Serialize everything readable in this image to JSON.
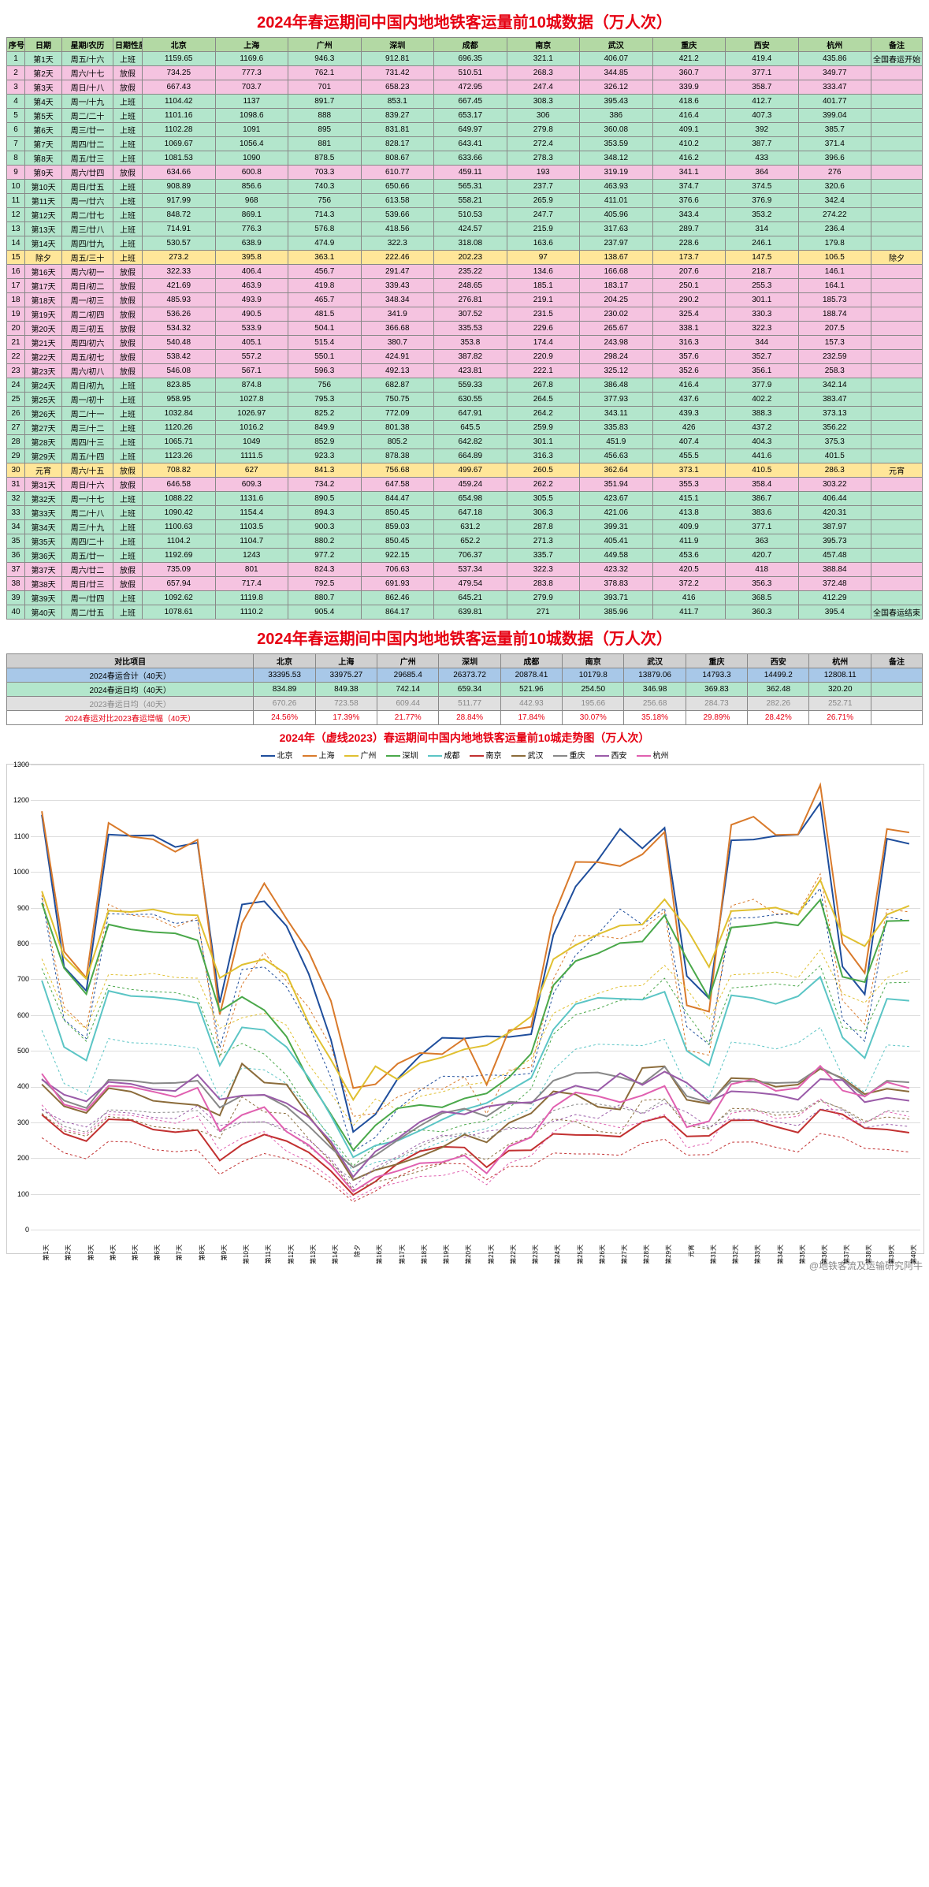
{
  "title_main": "2024年春运期间中国内地地铁客运量前10城数据（万人次）",
  "title_chart": "2024年（虚线2023）春运期间中国内地地铁客运量前10城走势图（万人次）",
  "watermark": "@地铁客流及运输研究阿牛",
  "headers": [
    "序号",
    "日期",
    "星期/农历",
    "日期性质",
    "北京",
    "上海",
    "广州",
    "深圳",
    "成都",
    "南京",
    "武汉",
    "重庆",
    "西安",
    "杭州",
    "备注"
  ],
  "cities": [
    "北京",
    "上海",
    "广州",
    "深圳",
    "成都",
    "南京",
    "武汉",
    "重庆",
    "西安",
    "杭州"
  ],
  "colors": {
    "北京": "#1f4e9c",
    "上海": "#d97a2b",
    "广州": "#e0c030",
    "深圳": "#4aa84a",
    "成都": "#5bc5c5",
    "南京": "#c23030",
    "武汉": "#8b6b3a",
    "重庆": "#888888",
    "西安": "#9a5ba8",
    "杭州": "#e060b0",
    "title": "#e60012",
    "grid": "#dddddd",
    "border": "#888888"
  },
  "rows": [
    {
      "i": 1,
      "d": "第1天",
      "w": "周五/十六",
      "n": "上班",
      "t": "work",
      "v": [
        1159.65,
        1169.6,
        946.3,
        912.81,
        696.35,
        321.1,
        406.07,
        421.2,
        419.4,
        435.86
      ],
      "note": "全国春运开始"
    },
    {
      "i": 2,
      "d": "第2天",
      "w": "周六/十七",
      "n": "放假",
      "t": "rest",
      "v": [
        734.25,
        777.3,
        762.1,
        731.42,
        510.51,
        268.3,
        344.85,
        360.7,
        377.1,
        349.77
      ],
      "note": ""
    },
    {
      "i": 3,
      "d": "第3天",
      "w": "周日/十八",
      "n": "放假",
      "t": "rest",
      "v": [
        667.43,
        703.7,
        701,
        658.23,
        472.95,
        247.4,
        326.12,
        339.9,
        358.7,
        333.47
      ],
      "note": ""
    },
    {
      "i": 4,
      "d": "第4天",
      "w": "周一/十九",
      "n": "上班",
      "t": "work",
      "v": [
        1104.42,
        1137,
        891.7,
        853.1,
        667.45,
        308.3,
        395.43,
        418.6,
        412.7,
        401.77
      ],
      "note": ""
    },
    {
      "i": 5,
      "d": "第5天",
      "w": "周二/二十",
      "n": "上班",
      "t": "work",
      "v": [
        1101.16,
        1098.6,
        888.0,
        839.27,
        653.17,
        306,
        386,
        416.4,
        407.3,
        399.04
      ],
      "note": ""
    },
    {
      "i": 6,
      "d": "第6天",
      "w": "周三/廿一",
      "n": "上班",
      "t": "work",
      "v": [
        1102.28,
        1091,
        895,
        831.81,
        649.97,
        279.8,
        360.08,
        409.1,
        392,
        385.7
      ],
      "note": ""
    },
    {
      "i": 7,
      "d": "第7天",
      "w": "周四/廿二",
      "n": "上班",
      "t": "work",
      "v": [
        1069.67,
        1056.4,
        881,
        828.17,
        643.41,
        272.4,
        353.59,
        410.2,
        387.7,
        371.4
      ],
      "note": ""
    },
    {
      "i": 8,
      "d": "第8天",
      "w": "周五/廿三",
      "n": "上班",
      "t": "work",
      "v": [
        1081.53,
        1090,
        878.5,
        808.67,
        633.66,
        278.3,
        348.12,
        416.2,
        433,
        396.6
      ],
      "note": ""
    },
    {
      "i": 9,
      "d": "第9天",
      "w": "周六/廿四",
      "n": "放假",
      "t": "rest",
      "v": [
        634.66,
        600.8,
        703.3,
        610.77,
        459.11,
        193,
        319.19,
        341.1,
        364,
        276
      ],
      "note": ""
    },
    {
      "i": 10,
      "d": "第10天",
      "w": "周日/廿五",
      "n": "上班",
      "t": "work",
      "v": [
        908.89,
        856.6,
        740.3,
        650.66,
        565.31,
        237.7,
        463.93,
        374.7,
        374.5,
        320.6
      ],
      "note": ""
    },
    {
      "i": 11,
      "d": "第11天",
      "w": "周一/廿六",
      "n": "上班",
      "t": "work",
      "v": [
        917.99,
        968,
        756,
        613.58,
        558.21,
        265.9,
        411.01,
        376.6,
        376.9,
        342.4
      ],
      "note": ""
    },
    {
      "i": 12,
      "d": "第12天",
      "w": "周二/廿七",
      "n": "上班",
      "t": "work",
      "v": [
        848.72,
        869.1,
        714.3,
        539.66,
        510.53,
        247.7,
        405.96,
        343.4,
        353.2,
        274.22
      ],
      "note": ""
    },
    {
      "i": 13,
      "d": "第13天",
      "w": "周三/廿八",
      "n": "上班",
      "t": "work",
      "v": [
        714.91,
        776.3,
        576.8,
        418.56,
        424.57,
        215.9,
        317.63,
        289.7,
        314,
        236.4
      ],
      "note": ""
    },
    {
      "i": 14,
      "d": "第14天",
      "w": "周四/廿九",
      "n": "上班",
      "t": "work",
      "v": [
        530.57,
        638.9,
        474.9,
        322.3,
        318.08,
        163.6,
        237.97,
        228.6,
        246.1,
        179.8
      ],
      "note": ""
    },
    {
      "i": 15,
      "d": "除夕",
      "w": "周五/三十",
      "n": "上班",
      "t": "fest",
      "v": [
        273.2,
        395.8,
        363.1,
        222.46,
        202.23,
        97,
        138.67,
        173.7,
        147.5,
        106.5
      ],
      "note": "除夕"
    },
    {
      "i": 16,
      "d": "第16天",
      "w": "周六/初一",
      "n": "放假",
      "t": "rest",
      "v": [
        322.33,
        406.4,
        456.7,
        291.47,
        235.22,
        134.6,
        166.68,
        207.6,
        218.7,
        146.1
      ],
      "note": ""
    },
    {
      "i": 17,
      "d": "第17天",
      "w": "周日/初二",
      "n": "放假",
      "t": "rest",
      "v": [
        421.69,
        463.9,
        419.8,
        339.43,
        248.65,
        185.1,
        183.17,
        250.1,
        255.3,
        164.1
      ],
      "note": ""
    },
    {
      "i": 18,
      "d": "第18天",
      "w": "周一/初三",
      "n": "放假",
      "t": "rest",
      "v": [
        485.93,
        493.9,
        465.7,
        348.34,
        276.81,
        219.1,
        204.25,
        290.2,
        301.1,
        185.73
      ],
      "note": ""
    },
    {
      "i": 19,
      "d": "第19天",
      "w": "周二/初四",
      "n": "放假",
      "t": "rest",
      "v": [
        536.26,
        490.5,
        481.5,
        341.9,
        307.52,
        231.5,
        230.02,
        325.4,
        330.3,
        188.74
      ],
      "note": ""
    },
    {
      "i": 20,
      "d": "第20天",
      "w": "周三/初五",
      "n": "放假",
      "t": "rest",
      "v": [
        534.32,
        533.9,
        504.1,
        366.68,
        335.53,
        229.6,
        265.67,
        338.1,
        322.3,
        207.5
      ],
      "note": ""
    },
    {
      "i": 21,
      "d": "第21天",
      "w": "周四/初六",
      "n": "放假",
      "t": "rest",
      "v": [
        540.48,
        405.1,
        515.4,
        380.7,
        353.8,
        174.4,
        243.98,
        316.3,
        344,
        157.3
      ],
      "note": ""
    },
    {
      "i": 22,
      "d": "第22天",
      "w": "周五/初七",
      "n": "放假",
      "t": "rest",
      "v": [
        538.42,
        557.2,
        550.1,
        424.91,
        387.82,
        220.9,
        298.24,
        357.6,
        352.7,
        232.59
      ],
      "note": ""
    },
    {
      "i": 23,
      "d": "第23天",
      "w": "周六/初八",
      "n": "放假",
      "t": "rest",
      "v": [
        546.08,
        567.1,
        596.3,
        492.13,
        423.81,
        222.1,
        325.12,
        352.6,
        356.1,
        258.3
      ],
      "note": ""
    },
    {
      "i": 24,
      "d": "第24天",
      "w": "周日/初九",
      "n": "上班",
      "t": "work",
      "v": [
        823.85,
        874.8,
        756,
        682.87,
        559.33,
        267.8,
        386.48,
        416.4,
        377.9,
        342.14
      ],
      "note": ""
    },
    {
      "i": 25,
      "d": "第25天",
      "w": "周一/初十",
      "n": "上班",
      "t": "work",
      "v": [
        958.95,
        1027.8,
        795.3,
        750.75,
        630.55,
        264.5,
        377.93,
        437.6,
        402.2,
        383.47
      ],
      "note": ""
    },
    {
      "i": 26,
      "d": "第26天",
      "w": "周二/十一",
      "n": "上班",
      "t": "work",
      "v": [
        1032.84,
        1026.97,
        825.2,
        772.09,
        647.91,
        264.2,
        343.11,
        439.3,
        388.3,
        373.13
      ],
      "note": ""
    },
    {
      "i": 27,
      "d": "第27天",
      "w": "周三/十二",
      "n": "上班",
      "t": "work",
      "v": [
        1120.26,
        1016.2,
        849.9,
        801.38,
        645.5,
        259.9,
        335.83,
        426,
        437.2,
        356.22
      ],
      "note": ""
    },
    {
      "i": 28,
      "d": "第28天",
      "w": "周四/十三",
      "n": "上班",
      "t": "work",
      "v": [
        1065.71,
        1049,
        852.9,
        805.2,
        642.82,
        301.1,
        451.9,
        407.4,
        404.3,
        375.3
      ],
      "note": ""
    },
    {
      "i": 29,
      "d": "第29天",
      "w": "周五/十四",
      "n": "上班",
      "t": "work",
      "v": [
        1123.26,
        1111.5,
        923.3,
        878.38,
        664.89,
        316.3,
        456.63,
        455.5,
        441.6,
        401.5
      ],
      "note": ""
    },
    {
      "i": 30,
      "d": "元宵",
      "w": "周六/十五",
      "n": "放假",
      "t": "fest",
      "v": [
        708.82,
        627,
        841.3,
        756.68,
        499.67,
        260.5,
        362.64,
        373.1,
        410.5,
        286.3
      ],
      "note": "元宵"
    },
    {
      "i": 31,
      "d": "第31天",
      "w": "周日/十六",
      "n": "放假",
      "t": "rest",
      "v": [
        646.58,
        609.3,
        734.2,
        647.58,
        459.24,
        262.2,
        351.94,
        355.3,
        358.4,
        303.22
      ],
      "note": ""
    },
    {
      "i": 32,
      "d": "第32天",
      "w": "周一/十七",
      "n": "上班",
      "t": "work",
      "v": [
        1088.22,
        1131.6,
        890.5,
        844.47,
        654.98,
        305.5,
        423.67,
        415.1,
        386.7,
        406.44
      ],
      "note": ""
    },
    {
      "i": 33,
      "d": "第33天",
      "w": "周二/十八",
      "n": "上班",
      "t": "work",
      "v": [
        1090.42,
        1154.4,
        894.3,
        850.45,
        647.18,
        306.3,
        421.06,
        413.8,
        383.6,
        420.31
      ],
      "note": ""
    },
    {
      "i": 34,
      "d": "第34天",
      "w": "周三/十九",
      "n": "上班",
      "t": "work",
      "v": [
        1100.63,
        1103.5,
        900.3,
        859.03,
        631.2,
        287.8,
        399.31,
        409.9,
        377.1,
        387.97
      ],
      "note": ""
    },
    {
      "i": 35,
      "d": "第35天",
      "w": "周四/二十",
      "n": "上班",
      "t": "work",
      "v": [
        1104.2,
        1104.7,
        880.2,
        850.45,
        652.2,
        271.3,
        405.41,
        411.9,
        363,
        395.73
      ],
      "note": ""
    },
    {
      "i": 36,
      "d": "第36天",
      "w": "周五/廿一",
      "n": "上班",
      "t": "work",
      "v": [
        1192.69,
        1243,
        977.2,
        922.15,
        706.37,
        335.7,
        449.58,
        453.6,
        420.7,
        457.48
      ],
      "note": ""
    },
    {
      "i": 37,
      "d": "第37天",
      "w": "周六/廿二",
      "n": "放假",
      "t": "rest",
      "v": [
        735.09,
        801,
        824.3,
        706.63,
        537.34,
        322.3,
        423.32,
        420.5,
        418,
        388.84
      ],
      "note": ""
    },
    {
      "i": 38,
      "d": "第38天",
      "w": "周日/廿三",
      "n": "放假",
      "t": "rest",
      "v": [
        657.94,
        717.4,
        792.5,
        691.93,
        479.54,
        283.8,
        378.83,
        372.2,
        356.3,
        372.48
      ],
      "note": ""
    },
    {
      "i": 39,
      "d": "第39天",
      "w": "周一/廿四",
      "n": "上班",
      "t": "work",
      "v": [
        1092.62,
        1119.8,
        880.7,
        862.46,
        645.21,
        279.9,
        393.71,
        416,
        368.5,
        412.29
      ],
      "note": ""
    },
    {
      "i": 40,
      "d": "第40天",
      "w": "周二/廿五",
      "n": "上班",
      "t": "work",
      "v": [
        1078.61,
        1110.2,
        905.4,
        864.17,
        639.81,
        271,
        385.96,
        411.7,
        360.3,
        395.4
      ],
      "note": "全国春运结束"
    }
  ],
  "summary": {
    "label_col": "对比项目",
    "rows": [
      {
        "cls": "sum-total",
        "label": "2024春运合计（40天）",
        "v": [
          "33395.53",
          "33975.27",
          "29685.4",
          "26373.72",
          "20878.41",
          "10179.8",
          "13879.06",
          "14793.3",
          "14499.2",
          "12808.11"
        ],
        "note": ""
      },
      {
        "cls": "sum-avg24",
        "label": "2024春运日均（40天）",
        "v": [
          "834.89",
          "849.38",
          "742.14",
          "659.34",
          "521.96",
          "254.50",
          "346.98",
          "369.83",
          "362.48",
          "320.20"
        ],
        "note": ""
      },
      {
        "cls": "sum-avg23",
        "label": "2023春运日均（40天）",
        "v": [
          "670.26",
          "723.58",
          "609.44",
          "511.77",
          "442.93",
          "195.66",
          "256.68",
          "284.73",
          "282.26",
          "252.71"
        ],
        "note": ""
      },
      {
        "cls": "sum-growth",
        "label": "2024春运对比2023春运增幅（40天）",
        "v": [
          "24.56%",
          "17.39%",
          "21.77%",
          "28.84%",
          "17.84%",
          "30.07%",
          "35.18%",
          "29.89%",
          "28.42%",
          "26.71%"
        ],
        "note": ""
      }
    ]
  },
  "chart": {
    "ymin": 0,
    "ymax": 1300,
    "ystep": 100
  }
}
